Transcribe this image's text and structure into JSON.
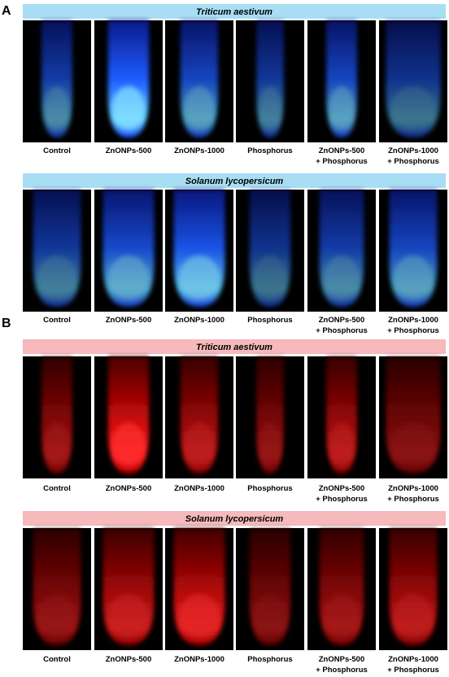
{
  "panels": [
    {
      "label": "A",
      "groups": [
        {
          "title": "Triticum aestivum",
          "captions": [
            [
              "Control"
            ],
            [
              "ZnONPs-500"
            ],
            [
              "ZnONPs-1000"
            ],
            [
              "Phosphorus"
            ],
            [
              "ZnONPs-500",
              "+ Phosphorus"
            ],
            [
              "ZnONPs-1000",
              "+ Phosphorus"
            ]
          ]
        },
        {
          "title": "Solanum lycopersicum",
          "captions": [
            [
              "Control"
            ],
            [
              "ZnONPs-500"
            ],
            [
              "ZnONPs-1000"
            ],
            [
              "Phosphorus"
            ],
            [
              "ZnONPs-500",
              "+ Phosphorus"
            ],
            [
              "ZnONPs-1000",
              "+ Phosphorus"
            ]
          ]
        }
      ]
    },
    {
      "label": "B",
      "groups": [
        {
          "title": "Triticum aestivum",
          "captions": [
            [
              "Control"
            ],
            [
              "ZnONPs-500"
            ],
            [
              "ZnONPs-1000"
            ],
            [
              "Phosphorus"
            ],
            [
              "ZnONPs-500",
              "+ Phosphorus"
            ],
            [
              "ZnONPs-1000",
              "+ Phosphorus"
            ]
          ]
        },
        {
          "title": "Solanum lycopersicum",
          "captions": [
            [
              "Control"
            ],
            [
              "ZnONPs-500"
            ],
            [
              "ZnONPs-1000"
            ],
            [
              "Phosphorus"
            ],
            [
              "ZnONPs-500",
              "+ Phosphorus"
            ],
            [
              "ZnONPs-1000",
              "+ Phosphorus"
            ]
          ]
        }
      ]
    }
  ]
}
